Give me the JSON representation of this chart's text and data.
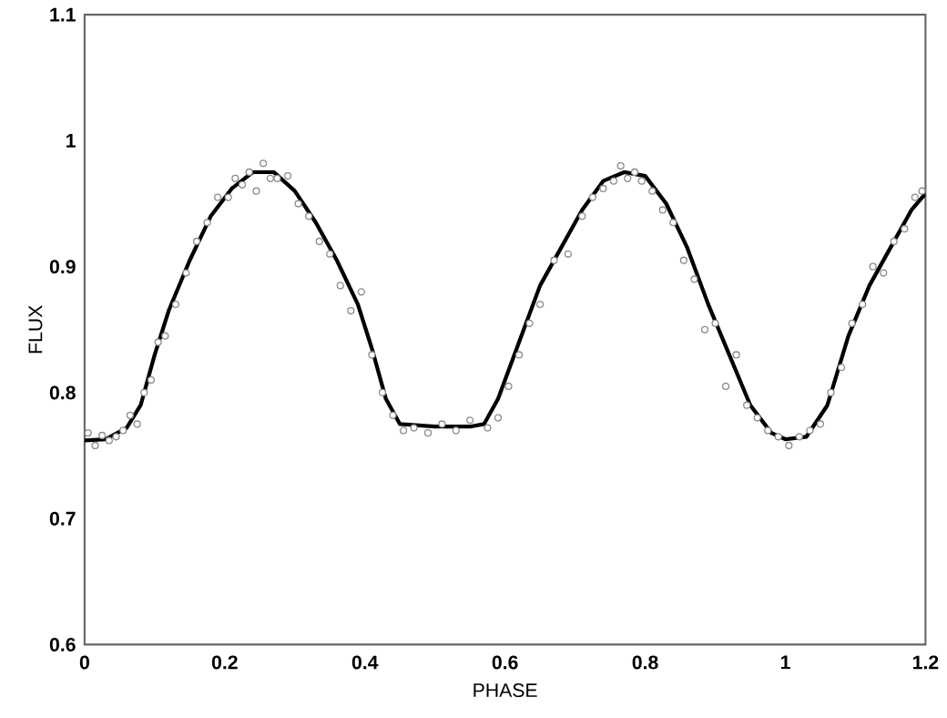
{
  "chart_data": {
    "type": "scatter",
    "xlabel": "PHASE",
    "ylabel": "FLUX",
    "xlim": [
      0,
      1.2
    ],
    "ylim": [
      0.6,
      1.1
    ],
    "xticks": [
      0,
      0.2,
      0.4,
      0.6,
      0.8,
      1,
      1.2
    ],
    "yticks": [
      0.6,
      0.7,
      0.8,
      0.9,
      1,
      1.1
    ],
    "series": [
      {
        "marker": "circle",
        "color": "#8c8c8c",
        "x": [
          0.005,
          0.015,
          0.025,
          0.035,
          0.045,
          0.055,
          0.065,
          0.075,
          0.085,
          0.095,
          0.105,
          0.115,
          0.13,
          0.145,
          0.16,
          0.175,
          0.19,
          0.205,
          0.215,
          0.225,
          0.235,
          0.245,
          0.255,
          0.265,
          0.275,
          0.29,
          0.305,
          0.32,
          0.335,
          0.35,
          0.365,
          0.38,
          0.395,
          0.41,
          0.425,
          0.44,
          0.455,
          0.47,
          0.49,
          0.51,
          0.53,
          0.55,
          0.575,
          0.59,
          0.605,
          0.62,
          0.635,
          0.65,
          0.67,
          0.69,
          0.71,
          0.725,
          0.74,
          0.755,
          0.765,
          0.775,
          0.785,
          0.795,
          0.81,
          0.825,
          0.84,
          0.855,
          0.87,
          0.885,
          0.9,
          0.915,
          0.93,
          0.945,
          0.96,
          0.975,
          0.99,
          1.005,
          1.02,
          1.035,
          1.05,
          1.065,
          1.08,
          1.095,
          1.11,
          1.125,
          1.14,
          1.155,
          1.17,
          1.185,
          1.195
        ],
        "values": [
          0.768,
          0.758,
          0.766,
          0.762,
          0.765,
          0.77,
          0.782,
          0.775,
          0.8,
          0.81,
          0.84,
          0.845,
          0.87,
          0.895,
          0.92,
          0.935,
          0.955,
          0.955,
          0.97,
          0.965,
          0.975,
          0.96,
          0.982,
          0.97,
          0.97,
          0.972,
          0.95,
          0.94,
          0.92,
          0.91,
          0.885,
          0.865,
          0.88,
          0.83,
          0.8,
          0.782,
          0.77,
          0.772,
          0.768,
          0.775,
          0.77,
          0.778,
          0.772,
          0.78,
          0.805,
          0.83,
          0.855,
          0.87,
          0.905,
          0.91,
          0.94,
          0.955,
          0.962,
          0.968,
          0.98,
          0.97,
          0.975,
          0.968,
          0.96,
          0.945,
          0.935,
          0.905,
          0.89,
          0.85,
          0.855,
          0.805,
          0.83,
          0.79,
          0.78,
          0.77,
          0.765,
          0.758,
          0.765,
          0.77,
          0.775,
          0.8,
          0.82,
          0.855,
          0.87,
          0.9,
          0.895,
          0.92,
          0.93,
          0.955,
          0.96
        ]
      },
      {
        "type": "line",
        "marker": "none",
        "color": "#000000",
        "x": [
          0,
          0.03,
          0.06,
          0.08,
          0.1,
          0.12,
          0.15,
          0.18,
          0.21,
          0.24,
          0.27,
          0.3,
          0.33,
          0.36,
          0.39,
          0.41,
          0.43,
          0.45,
          0.5,
          0.55,
          0.57,
          0.59,
          0.62,
          0.65,
          0.68,
          0.71,
          0.74,
          0.77,
          0.8,
          0.83,
          0.86,
          0.89,
          0.92,
          0.95,
          0.98,
          1.0,
          1.03,
          1.06,
          1.09,
          1.12,
          1.15,
          1.18,
          1.2
        ],
        "values": [
          0.762,
          0.763,
          0.772,
          0.79,
          0.83,
          0.865,
          0.905,
          0.94,
          0.962,
          0.975,
          0.975,
          0.96,
          0.935,
          0.905,
          0.87,
          0.835,
          0.795,
          0.775,
          0.773,
          0.773,
          0.775,
          0.795,
          0.84,
          0.885,
          0.915,
          0.945,
          0.968,
          0.975,
          0.972,
          0.95,
          0.915,
          0.87,
          0.83,
          0.79,
          0.768,
          0.763,
          0.765,
          0.79,
          0.845,
          0.885,
          0.915,
          0.945,
          0.958
        ]
      }
    ]
  }
}
